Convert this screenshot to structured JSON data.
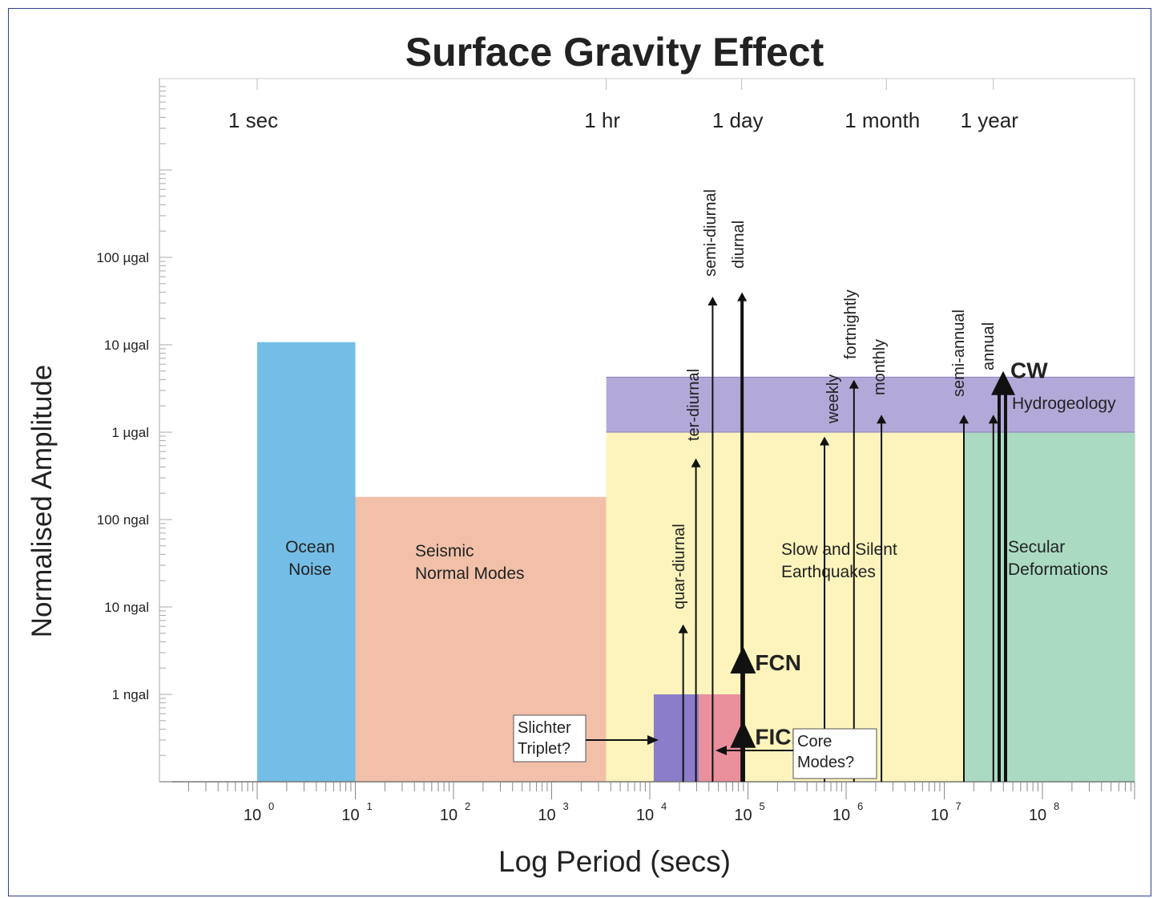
{
  "chart_data": {
    "type": "area",
    "title": "Surface Gravity Effect",
    "xlabel": "Log  Period (secs)",
    "ylabel": "Normalised Amplitude",
    "x_scale": "log10",
    "y_scale": "log10",
    "xlim_log10": [
      -1,
      9
    ],
    "ylim_log10": [
      -0.25,
      2.5
    ],
    "x_ticks": [
      {
        "exp": 0,
        "base": "10",
        "sup": "0"
      },
      {
        "exp": 1,
        "base": "10",
        "sup": "1"
      },
      {
        "exp": 2,
        "base": "10",
        "sup": "2"
      },
      {
        "exp": 3,
        "base": "10",
        "sup": "3"
      },
      {
        "exp": 4,
        "base": "10",
        "sup": "4"
      },
      {
        "exp": 5,
        "base": "10",
        "sup": "5"
      },
      {
        "exp": 6,
        "base": "10",
        "sup": "6"
      },
      {
        "exp": 7,
        "base": "10",
        "sup": "7"
      },
      {
        "exp": 8,
        "base": "10",
        "sup": "8"
      }
    ],
    "y_ticks": [
      {
        "label": "1 ngal",
        "y_log10_ngal": 0
      },
      {
        "label": "10 ngal",
        "y_log10_ngal": 1
      },
      {
        "label": "100 ngal",
        "y_log10_ngal": 2
      },
      {
        "label": "1 µgal",
        "y_log10_ngal": 3
      },
      {
        "label": "10 µgal",
        "y_log10_ngal": 4
      },
      {
        "label": "100 µgal",
        "y_log10_ngal": 5
      }
    ],
    "time_markers": [
      {
        "label": "1 sec",
        "period_log10": 0
      },
      {
        "label": "1 hr",
        "period_log10": 3.556
      },
      {
        "label": "1 day",
        "period_log10": 4.936
      },
      {
        "label": "1 month",
        "period_log10": 6.41
      },
      {
        "label": "1 year",
        "period_log10": 7.5
      }
    ],
    "regions": [
      {
        "name": "Ocean Noise",
        "lines": [
          "Ocean",
          "Noise"
        ],
        "x_log10": [
          0,
          1
        ],
        "y_top_log10_ngal": 4.03,
        "color": "#74bde6"
      },
      {
        "name": "Seismic Normal Modes",
        "lines": [
          "Seismic",
          "Normal Modes"
        ],
        "x_log10": [
          1,
          3.556
        ],
        "y_top_log10_ngal": 2.26,
        "color": "#f2c0a9"
      },
      {
        "name": "Slow and Silent Earthquakes",
        "lines": [
          "Slow and Silent",
          "Earthquakes"
        ],
        "x_log10": [
          3.556,
          7.2
        ],
        "y_top_log10_ngal": 3,
        "color": "#fcf4bc"
      },
      {
        "name": "Hydrogeology",
        "lines": [
          "Hydrogeology"
        ],
        "x_log10": [
          3.556,
          9
        ],
        "y_top_log10_ngal": 3.63,
        "y_bottom_log10_ngal": 3,
        "color": "#b3a9d9"
      },
      {
        "name": "Secular Deformations",
        "lines": [
          "Secular",
          "Deformations"
        ],
        "x_log10": [
          7.2,
          9
        ],
        "y_top_log10_ngal": 3,
        "color": "#aadbc2"
      },
      {
        "name": "Slichter Triplet band",
        "lines": [],
        "x_log10": [
          4.04,
          4.5
        ],
        "y_top_log10_ngal": 0,
        "color": "#8b7dc9"
      },
      {
        "name": "Core Modes band",
        "lines": [],
        "x_log10": [
          4.5,
          4.95
        ],
        "y_top_log10_ngal": 0,
        "color": "#ea8f9c"
      }
    ],
    "tidal_lines": [
      {
        "label": "quar-diurnal",
        "period_log10": 4.34,
        "y_top_log10_ngal": 0.8
      },
      {
        "label": "ter-diurnal",
        "period_log10": 4.47,
        "y_top_log10_ngal": 2.7
      },
      {
        "label": "semi-diurnal",
        "period_log10": 4.64,
        "y_top_log10_ngal": 4.55
      },
      {
        "label": "diurnal",
        "period_log10": 4.94,
        "y_top_log10_ngal": 4.6
      },
      {
        "label": "weekly",
        "period_log10": 5.78,
        "y_top_log10_ngal": 2.95
      },
      {
        "label": "fortnightly",
        "period_log10": 6.08,
        "y_top_log10_ngal": 3.6
      },
      {
        "label": "monthly",
        "period_log10": 6.36,
        "y_top_log10_ngal": 3.2
      },
      {
        "label": "semi-annual",
        "period_log10": 7.2,
        "y_top_log10_ngal": 3.2
      },
      {
        "label": "annual",
        "period_log10": 7.5,
        "y_top_log10_ngal": 3.2
      }
    ],
    "bold_arrows": [
      {
        "label": "FCN",
        "period_log10": 4.95,
        "y_top_log10_ngal": 0.55
      },
      {
        "label": "FICN?",
        "period_log10": 4.95,
        "y_top_log10_ngal": -0.3
      },
      {
        "label": "CW",
        "period_log10": 7.6,
        "y_top_log10_ngal": 3.7
      }
    ],
    "callouts": [
      {
        "name": "slichter-triplet",
        "lines": [
          "Slichter",
          "Triplet?"
        ]
      },
      {
        "name": "core-modes",
        "lines": [
          "Core",
          "Modes?"
        ]
      }
    ]
  }
}
